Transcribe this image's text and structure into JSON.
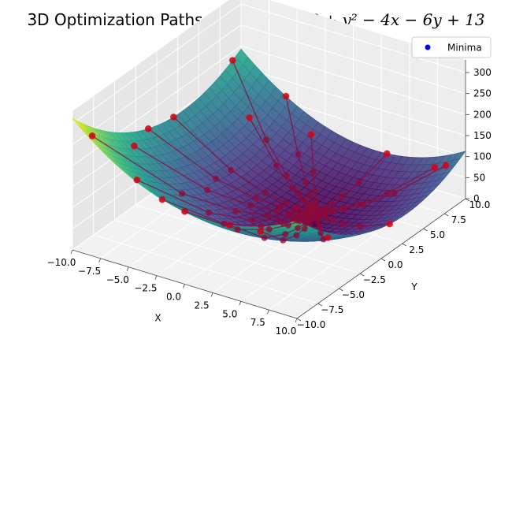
{
  "chart_data": {
    "type": "surface3d",
    "title_prefix": "3D Optimization Paths for ",
    "title_math": "f(x, y) = x² + y² − 4x − 6y + 13",
    "xlabel": "X",
    "ylabel": "Y",
    "zlabel": "",
    "xlim": [
      -10,
      10
    ],
    "ylim": [
      -10,
      10
    ],
    "zlim": [
      0,
      330
    ],
    "x_ticks": [
      -10,
      -7.5,
      -5,
      -2.5,
      0,
      2.5,
      5,
      7.5,
      10
    ],
    "x_tick_labels": [
      "−10.0",
      "−7.5",
      "−5.0",
      "−2.5",
      "0.0",
      "2.5",
      "5.0",
      "7.5",
      "10.0"
    ],
    "y_ticks": [
      -10,
      -7.5,
      -5,
      -2.5,
      0,
      2.5,
      5,
      7.5,
      10
    ],
    "y_tick_labels": [
      "−10.0",
      "−7.5",
      "−5.0",
      "−2.5",
      "0.0",
      "2.5",
      "5.0",
      "7.5",
      "10.0"
    ],
    "z_ticks": [
      0,
      50,
      100,
      150,
      200,
      250,
      300
    ],
    "z_tick_labels": [
      "0",
      "50",
      "100",
      "150",
      "200",
      "250",
      "300"
    ],
    "surface_function": "x^2 + y^2 - 4x - 6y + 13",
    "colormap": "viridis",
    "grid": true,
    "legend": {
      "position": "top-right",
      "entries": [
        {
          "label": "Minima",
          "color": "#0000ff"
        }
      ]
    },
    "path_color": "#8b0a3c",
    "start_color": "#ff0000",
    "minimum": [
      2,
      3,
      0
    ],
    "path_starts": [
      [
        -10,
        2
      ],
      [
        -9,
        -4
      ],
      [
        -7,
        7
      ],
      [
        -5,
        -9
      ],
      [
        -3,
        9
      ],
      [
        0,
        -10
      ],
      [
        3,
        10
      ],
      [
        -9,
        -9
      ],
      [
        6,
        -9
      ],
      [
        9,
        9
      ],
      [
        9,
        -5
      ],
      [
        -10,
        9
      ],
      [
        -6,
        10
      ],
      [
        4,
        -10
      ],
      [
        10,
        1
      ],
      [
        -2,
        -10
      ],
      [
        -10,
        -1
      ],
      [
        8,
        9
      ]
    ],
    "path_steps": 9,
    "learning_rate": 0.2
  }
}
